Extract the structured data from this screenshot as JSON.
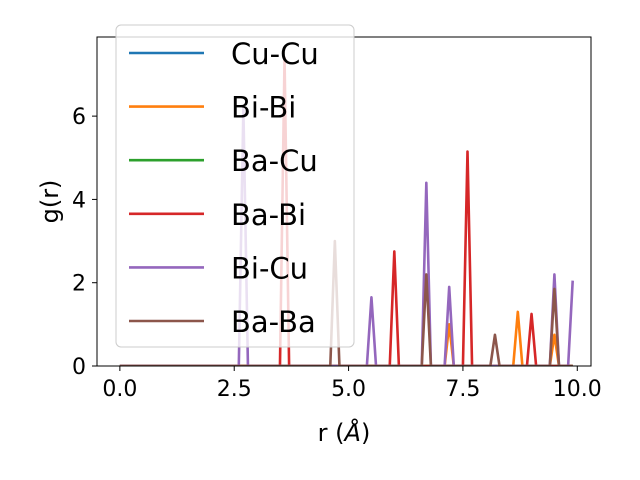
{
  "chart_data": {
    "type": "line",
    "xlabel_prefix": "r (",
    "xlabel_unit": "Å",
    "xlabel_suffix": ")",
    "ylabel": "g(r)",
    "xlim": [
      -0.5,
      10.3
    ],
    "ylim": [
      0,
      7.9
    ],
    "xticks": [
      {
        "value": 0.0,
        "label": "0.0"
      },
      {
        "value": 2.5,
        "label": "2.5"
      },
      {
        "value": 5.0,
        "label": "5.0"
      },
      {
        "value": 7.5,
        "label": "7.5"
      },
      {
        "value": 10.0,
        "label": "10.0"
      }
    ],
    "yticks": [
      {
        "value": 0,
        "label": "0"
      },
      {
        "value": 2,
        "label": "2"
      },
      {
        "value": 4,
        "label": "4"
      },
      {
        "value": 6,
        "label": "6"
      }
    ],
    "grid": false,
    "legend_position": "upper-left",
    "series": [
      {
        "name": "Cu-Cu",
        "color": "#1f77b4",
        "peaks": []
      },
      {
        "name": "Bi-Bi",
        "color": "#ff7f0e",
        "peaks": [
          [
            7.2,
            1.0
          ],
          [
            8.7,
            1.3
          ],
          [
            9.5,
            0.75
          ]
        ]
      },
      {
        "name": "Ba-Cu",
        "color": "#2ca02c",
        "peaks": []
      },
      {
        "name": "Ba-Bi",
        "color": "#d62728",
        "peaks": [
          [
            3.6,
            7.4
          ],
          [
            6.0,
            2.75
          ],
          [
            7.6,
            5.15
          ],
          [
            9.0,
            1.25
          ]
        ]
      },
      {
        "name": "Bi-Cu",
        "color": "#9467bd",
        "peaks": [
          [
            2.7,
            6.2
          ],
          [
            5.5,
            1.65
          ],
          [
            6.7,
            4.4
          ],
          [
            7.2,
            1.9
          ],
          [
            9.5,
            2.2
          ],
          [
            9.9,
            2.05
          ]
        ]
      },
      {
        "name": "Ba-Ba",
        "color": "#8c564b",
        "peaks": [
          [
            4.7,
            3.0
          ],
          [
            6.7,
            2.2
          ],
          [
            8.2,
            0.75
          ],
          [
            9.5,
            1.85
          ]
        ]
      }
    ]
  }
}
